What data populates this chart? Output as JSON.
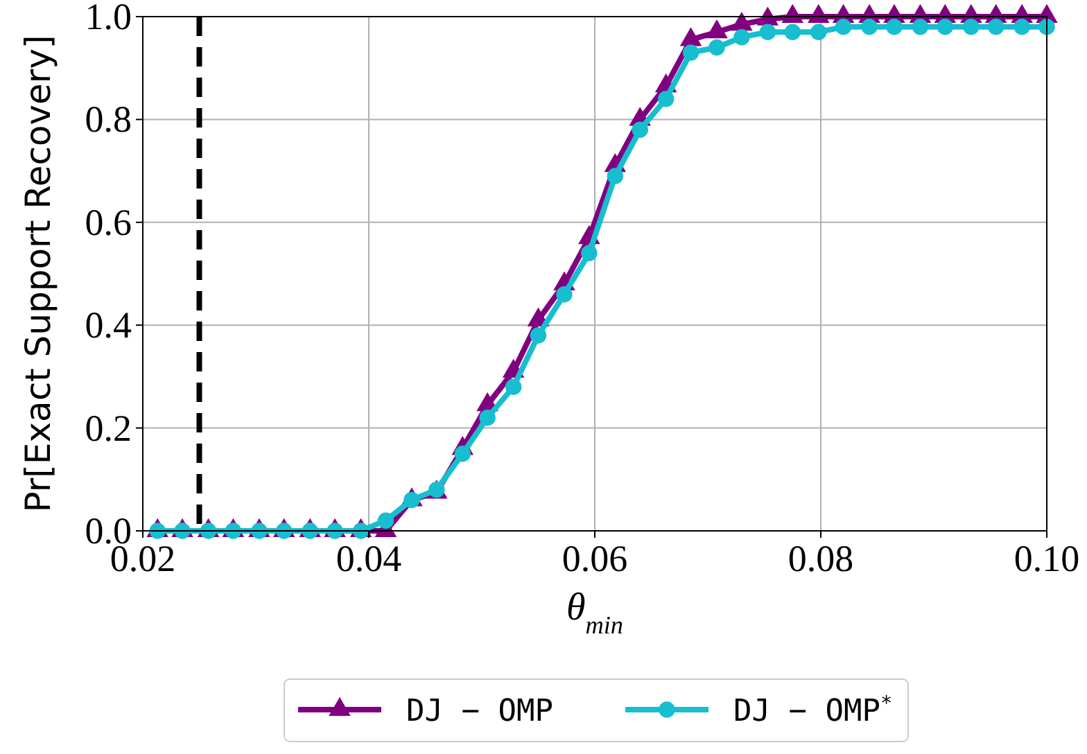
{
  "chart_data": {
    "type": "line",
    "xlabel": "θ$_{min}$",
    "ylabel": "Pr[Exact Support Recovery]",
    "x": [
      0.0213,
      0.0235,
      0.0258,
      0.028,
      0.0303,
      0.0325,
      0.0348,
      0.037,
      0.0393,
      0.0415,
      0.0438,
      0.046,
      0.0483,
      0.0505,
      0.0528,
      0.055,
      0.0573,
      0.0595,
      0.0618,
      0.064,
      0.0663,
      0.0685,
      0.0708,
      0.073,
      0.0753,
      0.0775,
      0.0798,
      0.082,
      0.0843,
      0.0865,
      0.0888,
      0.091,
      0.0933,
      0.0955,
      0.0978,
      0.1
    ],
    "series": [
      {
        "name": "DJ − OMP",
        "color": "#800080",
        "marker": "triangle",
        "values": [
          0,
          0,
          0,
          0,
          0,
          0,
          0,
          0,
          0,
          0,
          0.06,
          0.075,
          0.16,
          0.245,
          0.31,
          0.41,
          0.48,
          0.57,
          0.71,
          0.8,
          0.865,
          0.955,
          0.97,
          0.985,
          0.995,
          1,
          1,
          1,
          1,
          1,
          1,
          1,
          1,
          1,
          1,
          1
        ]
      },
      {
        "name": "DJ − OMP$^{*}$",
        "color": "#17becf",
        "marker": "circle",
        "values": [
          0,
          0,
          0,
          0,
          0,
          0,
          0,
          0,
          0,
          0.02,
          0.06,
          0.08,
          0.15,
          0.22,
          0.28,
          0.38,
          0.46,
          0.54,
          0.69,
          0.78,
          0.84,
          0.93,
          0.94,
          0.96,
          0.97,
          0.97,
          0.97,
          0.98,
          0.98,
          0.98,
          0.98,
          0.98,
          0.98,
          0.98,
          0.98,
          0.98
        ]
      }
    ],
    "xlim": [
      0.02,
      0.1
    ],
    "xticks": [
      0.02,
      0.04,
      0.06,
      0.08,
      {
        "value": 0.1,
        "label": "0.10"
      }
    ],
    "ylim": [
      0,
      1
    ],
    "yticks": [
      {
        "value": 0,
        "label": "0.0"
      },
      0.2,
      0.4,
      0.6,
      0.8,
      {
        "value": 1,
        "label": "1.0"
      }
    ],
    "ref_lines": [
      {
        "axis": "x",
        "value": 0.025,
        "color": "#000000",
        "line_style": "dashed"
      }
    ],
    "grid": true,
    "legend": "bottom",
    "line_style": "solid"
  }
}
